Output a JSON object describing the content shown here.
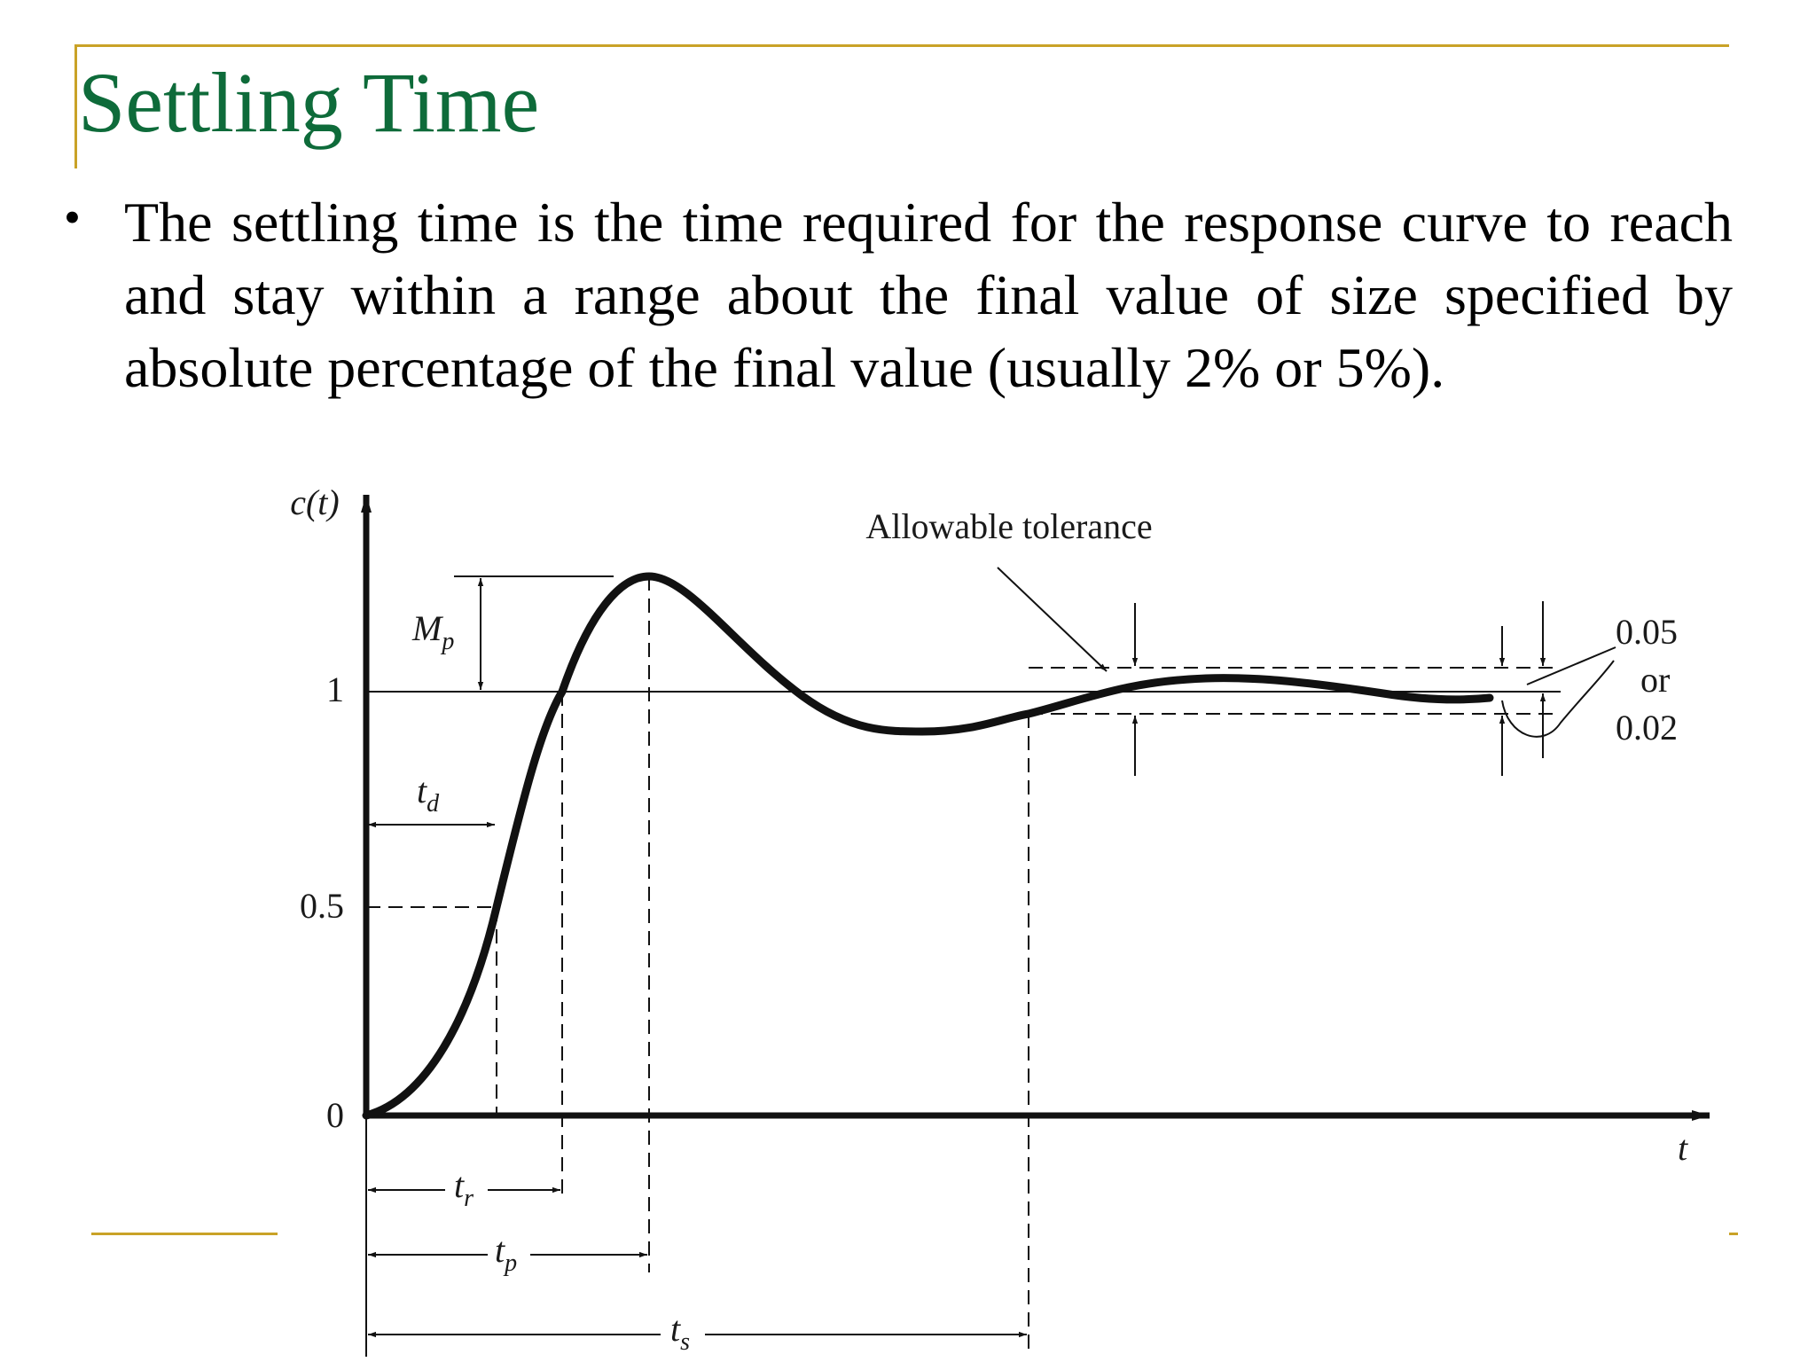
{
  "slide": {
    "title": "Settling Time",
    "bullet": "The settling time is the time required for the response curve to reach and stay within a range about the final value of size specified by absolute percentage of the final value (usually 2% or 5%)."
  },
  "figure": {
    "y_axis_label": "c(t)",
    "x_axis_label": "t",
    "y_ticks": [
      "1",
      "0.5",
      "0"
    ],
    "tolerance_label": "Allowable tolerance",
    "tolerance_values": [
      "0.05",
      "or",
      "0.02"
    ],
    "mp_label": "M",
    "mp_sub": "p",
    "td_label": "t",
    "td_sub": "d",
    "tr_label": "t",
    "tr_sub": "r",
    "tp_label": "t",
    "tp_sub": "p",
    "ts_label": "t",
    "ts_sub": "s"
  }
}
